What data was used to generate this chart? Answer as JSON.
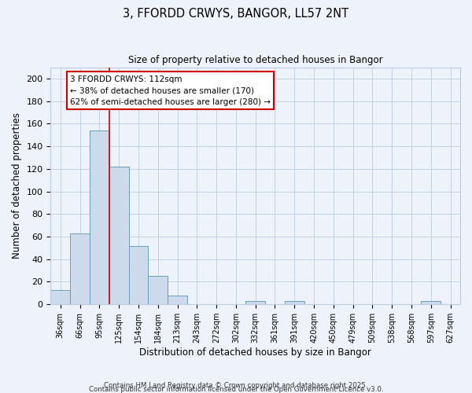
{
  "title": "3, FFORDD CRWYS, BANGOR, LL57 2NT",
  "subtitle": "Size of property relative to detached houses in Bangor",
  "xlabel": "Distribution of detached houses by size in Bangor",
  "ylabel": "Number of detached properties",
  "bar_color": "#ccdaec",
  "bar_edge_color": "#6a9fc0",
  "background_color": "#eef2fb",
  "grid_color": "#b8cce4",
  "categories": [
    "36sqm",
    "66sqm",
    "95sqm",
    "125sqm",
    "154sqm",
    "184sqm",
    "213sqm",
    "243sqm",
    "272sqm",
    "302sqm",
    "332sqm",
    "361sqm",
    "391sqm",
    "420sqm",
    "450sqm",
    "479sqm",
    "509sqm",
    "538sqm",
    "568sqm",
    "597sqm",
    "627sqm"
  ],
  "values": [
    13,
    63,
    154,
    122,
    52,
    25,
    8,
    0,
    0,
    0,
    3,
    0,
    3,
    0,
    0,
    0,
    0,
    0,
    0,
    3,
    0
  ],
  "ylim": [
    0,
    210
  ],
  "yticks": [
    0,
    20,
    40,
    60,
    80,
    100,
    120,
    140,
    160,
    180,
    200
  ],
  "vline_x": 2.5,
  "vline_color": "#cc0000",
  "annotation_title": "3 FFORDD CRWYS: 112sqm",
  "annotation_line1": "← 38% of detached houses are smaller (170)",
  "annotation_line2": "62% of semi-detached houses are larger (280) →",
  "annotation_box_color": "#ffffff",
  "annotation_box_edge": "#cc0000",
  "footer1": "Contains HM Land Registry data © Crown copyright and database right 2025.",
  "footer2": "Contains public sector information licensed under the Open Government Licence v3.0."
}
